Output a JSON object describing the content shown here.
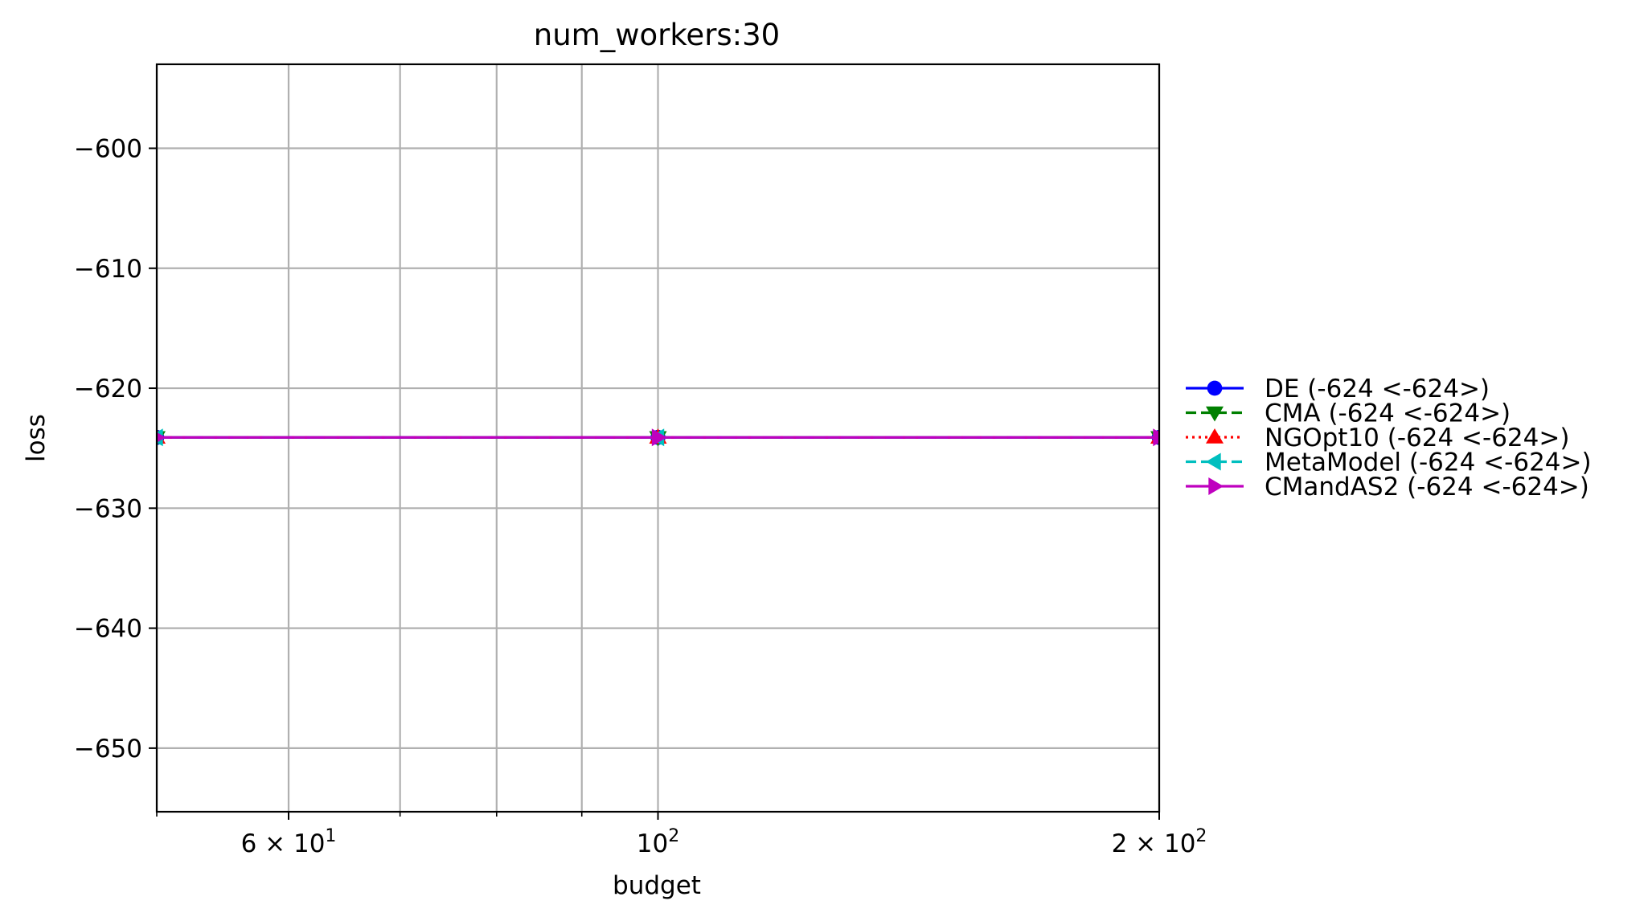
{
  "chart_data": {
    "type": "line",
    "title": "num_workers:30",
    "xlabel": "budget",
    "ylabel": "loss",
    "x_scale": "log",
    "xlim": [
      50,
      200
    ],
    "ylim": [
      -655.3,
      -593.0
    ],
    "grid": true,
    "legend_placement": "outside-right",
    "x_major_ticks": [
      {
        "value": 60,
        "base": "6 × 10",
        "exp": "1"
      },
      {
        "value": 100,
        "base": "10",
        "exp": "2"
      },
      {
        "value": 200,
        "base": "2 × 10",
        "exp": "2"
      }
    ],
    "x_minor_ticks": [
      50,
      70,
      80,
      90
    ],
    "y_ticks": [
      {
        "value": -600,
        "label": "−600"
      },
      {
        "value": -610,
        "label": "−610"
      },
      {
        "value": -620,
        "label": "−620"
      },
      {
        "value": -630,
        "label": "−630"
      },
      {
        "value": -640,
        "label": "−640"
      },
      {
        "value": -650,
        "label": "−650"
      }
    ],
    "x": [
      50,
      100,
      200
    ],
    "series": [
      {
        "name": "DE (-624 <-624>)",
        "values": [
          -624.1,
          -624.1,
          -624.1
        ],
        "color": "#0000ff",
        "dash": "solid",
        "marker": "circle"
      },
      {
        "name": "CMA (-624 <-624>)",
        "values": [
          -624.1,
          -624.1,
          -624.1
        ],
        "color": "#008000",
        "dash": "dashed",
        "marker": "triangle-down"
      },
      {
        "name": "NGOpt10 (-624 <-624>)",
        "values": [
          -624.1,
          -624.1,
          -624.1
        ],
        "color": "#ff0000",
        "dash": "dotted",
        "marker": "triangle-up"
      },
      {
        "name": "MetaModel (-624 <-624>)",
        "values": [
          -624.1,
          -624.1,
          -624.1
        ],
        "color": "#00bfbf",
        "dash": "dashed",
        "marker": "triangle-left"
      },
      {
        "name": "CMandAS2 (-624 <-624>)",
        "values": [
          -624.1,
          -624.1,
          -624.1
        ],
        "color": "#bf00bf",
        "dash": "solid",
        "marker": "triangle-right"
      }
    ]
  }
}
